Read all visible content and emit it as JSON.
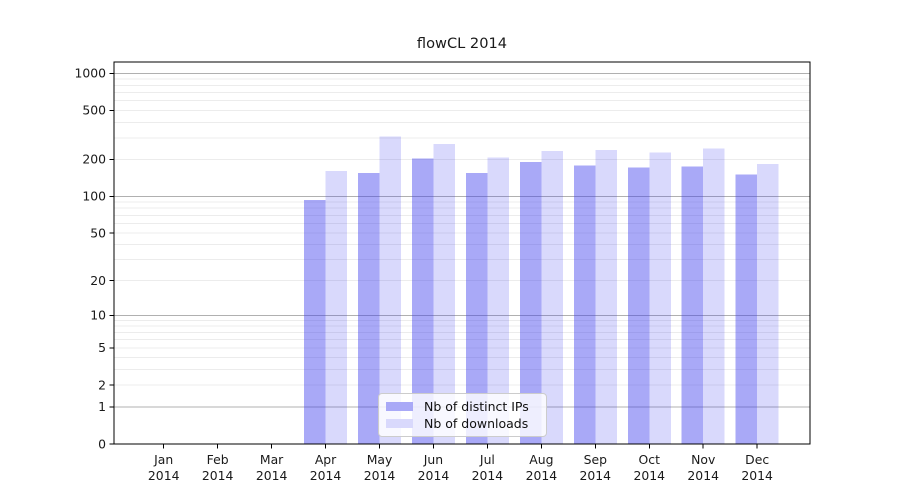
{
  "chart_data": {
    "type": "bar",
    "title": "flowCL 2014",
    "categories": [
      "Jan",
      "Feb",
      "Mar",
      "Apr",
      "May",
      "Jun",
      "Jul",
      "Aug",
      "Sep",
      "Oct",
      "Nov",
      "Dec"
    ],
    "year_label": "2014",
    "series": [
      {
        "name": "Nb of distinct IPs",
        "legend_color": "#a9a9f7",
        "bar_fill": "rgba(64,64,238,0.45)",
        "values": [
          null,
          null,
          null,
          93,
          155,
          204,
          155,
          190,
          178,
          172,
          175,
          151
        ]
      },
      {
        "name": "Nb of downloads",
        "legend_color": "#d9d9fc",
        "bar_fill": "rgba(64,64,238,0.2)",
        "values": [
          null,
          null,
          null,
          161,
          306,
          266,
          207,
          235,
          238,
          227,
          246,
          184
        ]
      }
    ],
    "yscale": "symlog",
    "yticks": [
      0,
      1,
      2,
      5,
      10,
      20,
      50,
      100,
      200,
      500,
      1000
    ],
    "ylim": [
      0,
      1230
    ],
    "grid": "on",
    "grid_major_color": "#b0b0b0",
    "grid_minor_color": "#ececec",
    "axis_color": "#000000",
    "legend_position": "lower-center"
  }
}
